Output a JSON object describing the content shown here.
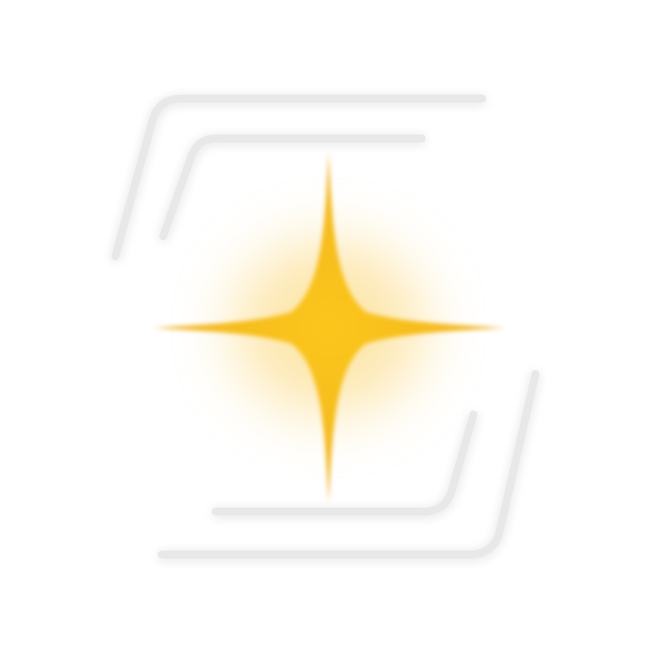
{
  "logo": {
    "description_name": "sparkle-bracket-logo",
    "colors": {
      "background": "#ffffff",
      "bracket_stroke": "#e9e9e9",
      "sparkle_core": "#f8c21c",
      "sparkle_edge": "#f5b823",
      "glow": "#fbd36a"
    }
  }
}
